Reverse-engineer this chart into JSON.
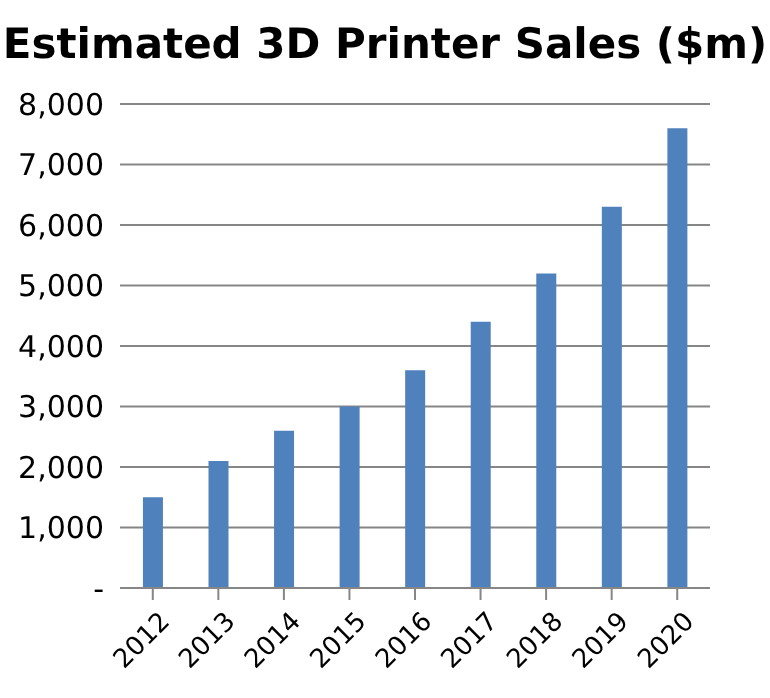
{
  "chart_data": {
    "type": "bar",
    "title": "Estimated 3D Printer Sales ($m)",
    "categories": [
      "2012",
      "2013",
      "2014",
      "2015",
      "2016",
      "2017",
      "2018",
      "2019",
      "2020"
    ],
    "values": [
      1500,
      2100,
      2600,
      3000,
      3600,
      4400,
      5200,
      6300,
      7600
    ],
    "color": "#4f81bd",
    "ylim": [
      0,
      8000
    ],
    "yticks": [
      {
        "value": 0,
        "label": "-"
      },
      {
        "value": 1000,
        "label": "1,000"
      },
      {
        "value": 2000,
        "label": "2,000"
      },
      {
        "value": 3000,
        "label": "3,000"
      },
      {
        "value": 4000,
        "label": "4,000"
      },
      {
        "value": 5000,
        "label": "5,000"
      },
      {
        "value": 6000,
        "label": "6,000"
      },
      {
        "value": 7000,
        "label": "7,000"
      },
      {
        "value": 8000,
        "label": "8,000"
      }
    ],
    "grid": "y"
  }
}
